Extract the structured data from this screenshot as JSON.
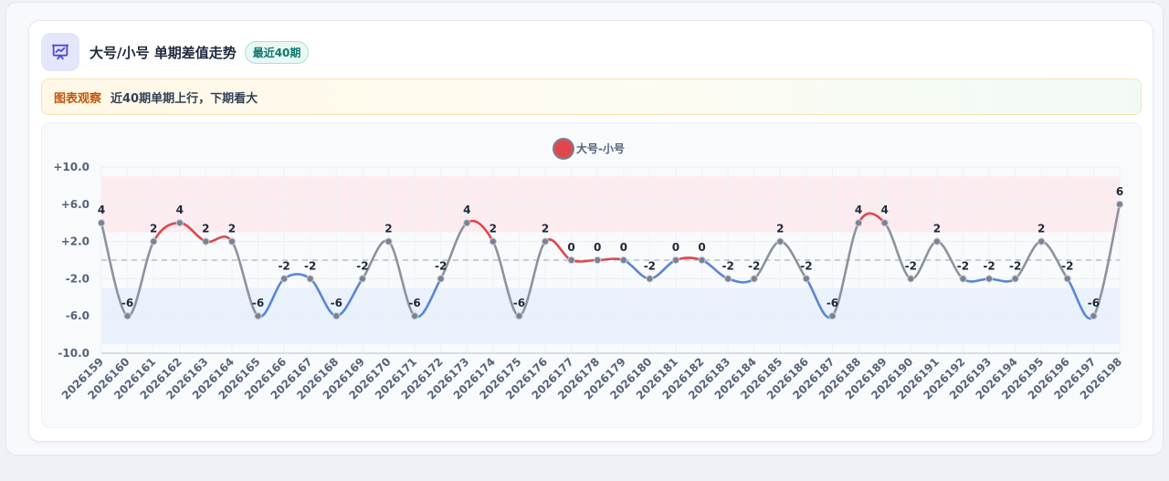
{
  "header": {
    "icon": "presentation-chart-icon",
    "title": "大号/小号 单期差值走势",
    "badge": "最近40期"
  },
  "note": {
    "tag": "图表观察",
    "text": "近40期单期上行，下期看大"
  },
  "colors": {
    "up": "#e0474c",
    "down": "#5b86d6",
    "neutral": "#8c939e",
    "legend": "#e0474c"
  },
  "chart_data": {
    "type": "line",
    "legend": "大号-小号",
    "legend_position": "top-center",
    "yticks": [
      "+10.0",
      "+6.0",
      "+2.0",
      "-2.0",
      "-6.0",
      "-10.0"
    ],
    "ylim": [
      -10,
      10
    ],
    "grid": true,
    "bands": [
      {
        "from": 3,
        "to": 9,
        "color": "#fde8ec"
      },
      {
        "from": -9,
        "to": -3,
        "color": "#e6eefc"
      }
    ],
    "reference_line": 0,
    "categories": [
      "2026159",
      "2026160",
      "2026161",
      "2026162",
      "2026163",
      "2026164",
      "2026165",
      "2026166",
      "2026167",
      "2026168",
      "2026169",
      "2026170",
      "2026171",
      "2026172",
      "2026173",
      "2026174",
      "2026175",
      "2026176",
      "2026177",
      "2026178",
      "2026179",
      "2026180",
      "2026181",
      "2026182",
      "2026183",
      "2026184",
      "2026185",
      "2026186",
      "2026187",
      "2026188",
      "2026189",
      "2026190",
      "2026191",
      "2026192",
      "2026193",
      "2026194",
      "2026195",
      "2026196",
      "2026197",
      "2026198"
    ],
    "values": [
      4,
      -6,
      2,
      4,
      2,
      2,
      -6,
      -2,
      -2,
      -6,
      -2,
      2,
      -6,
      -2,
      4,
      2,
      -6,
      2,
      0,
      0,
      0,
      -2,
      0,
      0,
      -2,
      -2,
      2,
      -2,
      -6,
      4,
      4,
      -2,
      2,
      -2,
      -2,
      -2,
      2,
      -2,
      -6,
      6
    ],
    "labels": [
      "4",
      "-6",
      "2",
      "4",
      "2",
      "2",
      "-6",
      "-2",
      "-2",
      "-6",
      "-2",
      "2",
      "-6",
      "-2",
      "4",
      "2",
      "-6",
      "2",
      "0",
      "0",
      "0",
      "-2",
      "0",
      "0",
      "-2",
      "-2",
      "2",
      "-2",
      "-6",
      "4",
      "4",
      "-2",
      "2",
      "-2",
      "-2",
      "-2",
      "2",
      "-2",
      "-6",
      "6"
    ]
  }
}
